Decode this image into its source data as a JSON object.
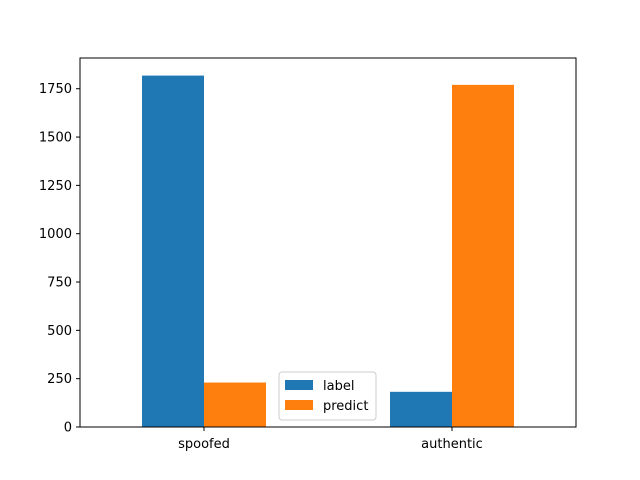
{
  "chart_data": {
    "type": "bar",
    "categories": [
      "spoofed",
      "authentic"
    ],
    "series": [
      {
        "name": "label",
        "values": [
          1818,
          182
        ],
        "color": "#1f77b4"
      },
      {
        "name": "predict",
        "values": [
          230,
          1770
        ],
        "color": "#ff7f0e"
      }
    ],
    "title": "",
    "xlabel": "",
    "ylabel": "",
    "ylim": [
      0,
      1909
    ],
    "yticks": [
      0,
      250,
      500,
      750,
      1000,
      1250,
      1500,
      1750
    ],
    "grid": false,
    "legend_position": "lower center"
  }
}
